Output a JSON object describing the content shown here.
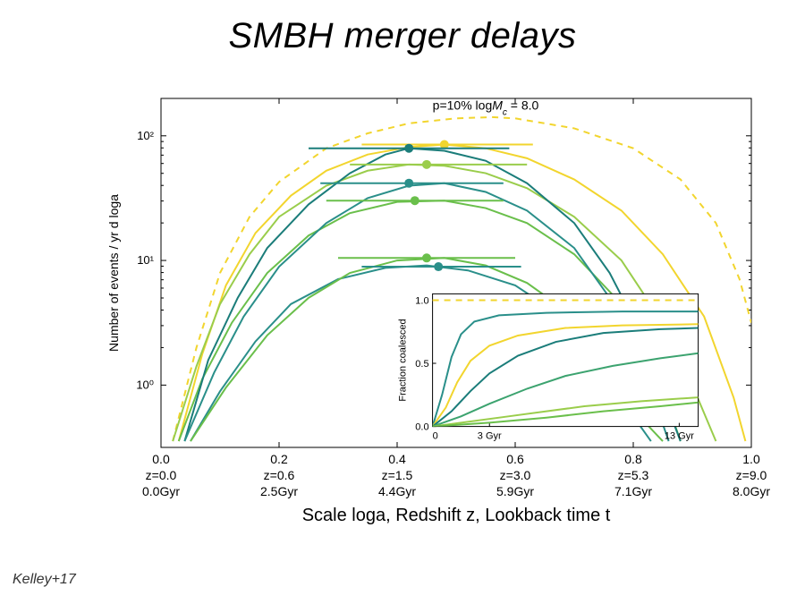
{
  "title": "SMBH merger delays",
  "credit": "Kelley+17",
  "main_chart": {
    "type": "line",
    "background_color": "#ffffff",
    "spine_color": "#000000",
    "annotation": "p=10%  log M_c = 8.0",
    "annotation_fontsize": 14,
    "ylabel": "Number of events / yr  d loga",
    "ylabel_fontsize": 14,
    "xlabel": "Scale loga, Redshift z, Lookback time t",
    "xlabel_fontsize": 20,
    "x": {
      "min": 0.0,
      "max": 1.0
    },
    "y": {
      "log": true,
      "min_exp": -0.5,
      "max_exp": 2.3
    },
    "xticks": [
      {
        "x": 0.0,
        "label_a": "0.0",
        "label_z": "z=0.0",
        "label_t": "0.0Gyr"
      },
      {
        "x": 0.2,
        "label_a": "0.2",
        "label_z": "z=0.6",
        "label_t": "2.5Gyr"
      },
      {
        "x": 0.4,
        "label_a": "0.4",
        "label_z": "z=1.5",
        "label_t": "4.4Gyr"
      },
      {
        "x": 0.6,
        "label_a": "0.6",
        "label_z": "z=3.0",
        "label_t": "5.9Gyr"
      },
      {
        "x": 0.8,
        "label_a": "0.8",
        "label_z": "z=5.3",
        "label_t": "7.1Gyr"
      },
      {
        "x": 1.0,
        "label_a": "1.0",
        "label_z": "z=9.0",
        "label_t": "8.0Gyr"
      }
    ],
    "yticks": [
      {
        "exp": 0,
        "label": "10⁰"
      },
      {
        "exp": 1,
        "label": "10¹"
      },
      {
        "exp": 2,
        "label": "10²"
      }
    ],
    "colors": {
      "yellow": "#f2d52e",
      "lime": "#9acd4b",
      "green": "#6abf4b",
      "darkgreen": "#3ca36f",
      "teal": "#2a8f8a",
      "darkteal": "#1b7d7a"
    },
    "series": [
      {
        "id": "dashed_yellow",
        "color": "#f2d52e",
        "dash": true,
        "line_width": 2,
        "points": [
          [
            0.02,
            -0.45
          ],
          [
            0.06,
            0.3
          ],
          [
            0.1,
            0.9
          ],
          [
            0.15,
            1.35
          ],
          [
            0.2,
            1.63
          ],
          [
            0.28,
            1.9
          ],
          [
            0.35,
            2.02
          ],
          [
            0.42,
            2.1
          ],
          [
            0.5,
            2.14
          ],
          [
            0.56,
            2.15
          ],
          [
            0.6,
            2.14
          ],
          [
            0.7,
            2.06
          ],
          [
            0.8,
            1.9
          ],
          [
            0.88,
            1.65
          ],
          [
            0.94,
            1.3
          ],
          [
            0.98,
            0.85
          ],
          [
            1.0,
            0.5
          ]
        ]
      },
      {
        "id": "yellow",
        "color": "#f2d52e",
        "dash": false,
        "line_width": 2.2,
        "points": [
          [
            0.03,
            -0.45
          ],
          [
            0.07,
            0.25
          ],
          [
            0.11,
            0.8
          ],
          [
            0.16,
            1.22
          ],
          [
            0.22,
            1.52
          ],
          [
            0.28,
            1.72
          ],
          [
            0.35,
            1.85
          ],
          [
            0.42,
            1.91
          ],
          [
            0.48,
            1.93
          ],
          [
            0.55,
            1.9
          ],
          [
            0.62,
            1.82
          ],
          [
            0.7,
            1.65
          ],
          [
            0.78,
            1.4
          ],
          [
            0.85,
            1.05
          ],
          [
            0.92,
            0.55
          ],
          [
            0.97,
            -0.1
          ],
          [
            0.99,
            -0.45
          ]
        ]
      },
      {
        "id": "lime",
        "color": "#9acd4b",
        "dash": false,
        "line_width": 2,
        "points": [
          [
            0.02,
            -0.45
          ],
          [
            0.06,
            0.15
          ],
          [
            0.1,
            0.65
          ],
          [
            0.15,
            1.05
          ],
          [
            0.2,
            1.35
          ],
          [
            0.28,
            1.6
          ],
          [
            0.35,
            1.72
          ],
          [
            0.42,
            1.77
          ],
          [
            0.48,
            1.76
          ],
          [
            0.55,
            1.7
          ],
          [
            0.62,
            1.58
          ],
          [
            0.7,
            1.35
          ],
          [
            0.78,
            1.0
          ],
          [
            0.85,
            0.5
          ],
          [
            0.9,
            0.0
          ],
          [
            0.94,
            -0.45
          ]
        ]
      },
      {
        "id": "green",
        "color": "#6abf4b",
        "dash": false,
        "line_width": 2,
        "points": [
          [
            0.03,
            -0.45
          ],
          [
            0.07,
            0.05
          ],
          [
            0.12,
            0.5
          ],
          [
            0.18,
            0.9
          ],
          [
            0.25,
            1.2
          ],
          [
            0.32,
            1.38
          ],
          [
            0.4,
            1.47
          ],
          [
            0.48,
            1.48
          ],
          [
            0.55,
            1.42
          ],
          [
            0.62,
            1.3
          ],
          [
            0.7,
            1.05
          ],
          [
            0.78,
            0.65
          ],
          [
            0.84,
            0.1
          ],
          [
            0.88,
            -0.45
          ]
        ]
      },
      {
        "id": "teal_high",
        "color": "#1b7d7a",
        "dash": false,
        "line_width": 2.2,
        "points": [
          [
            0.04,
            -0.45
          ],
          [
            0.08,
            0.2
          ],
          [
            0.13,
            0.7
          ],
          [
            0.18,
            1.1
          ],
          [
            0.25,
            1.45
          ],
          [
            0.32,
            1.7
          ],
          [
            0.38,
            1.85
          ],
          [
            0.42,
            1.9
          ],
          [
            0.48,
            1.88
          ],
          [
            0.55,
            1.8
          ],
          [
            0.62,
            1.62
          ],
          [
            0.7,
            1.3
          ],
          [
            0.76,
            0.9
          ],
          [
            0.82,
            0.35
          ],
          [
            0.86,
            -0.2
          ],
          [
            0.88,
            -0.45
          ]
        ]
      },
      {
        "id": "teal_mid",
        "color": "#2a8f8a",
        "dash": false,
        "line_width": 2,
        "points": [
          [
            0.04,
            -0.45
          ],
          [
            0.09,
            0.1
          ],
          [
            0.14,
            0.55
          ],
          [
            0.2,
            0.95
          ],
          [
            0.28,
            1.3
          ],
          [
            0.35,
            1.5
          ],
          [
            0.42,
            1.6
          ],
          [
            0.48,
            1.62
          ],
          [
            0.55,
            1.55
          ],
          [
            0.62,
            1.4
          ],
          [
            0.7,
            1.1
          ],
          [
            0.76,
            0.7
          ],
          [
            0.82,
            0.1
          ],
          [
            0.86,
            -0.45
          ]
        ]
      },
      {
        "id": "teal_low",
        "color": "#2a8f8a",
        "dash": false,
        "line_width": 2,
        "points": [
          [
            0.05,
            -0.45
          ],
          [
            0.1,
            -0.05
          ],
          [
            0.16,
            0.35
          ],
          [
            0.22,
            0.65
          ],
          [
            0.3,
            0.85
          ],
          [
            0.38,
            0.94
          ],
          [
            0.45,
            0.96
          ],
          [
            0.52,
            0.92
          ],
          [
            0.6,
            0.8
          ],
          [
            0.68,
            0.55
          ],
          [
            0.75,
            0.2
          ],
          [
            0.8,
            -0.25
          ],
          [
            0.83,
            -0.45
          ]
        ]
      },
      {
        "id": "green_low",
        "color": "#6abf4b",
        "dash": false,
        "line_width": 2,
        "points": [
          [
            0.05,
            -0.45
          ],
          [
            0.11,
            -0.02
          ],
          [
            0.18,
            0.4
          ],
          [
            0.25,
            0.7
          ],
          [
            0.32,
            0.9
          ],
          [
            0.4,
            1.0
          ],
          [
            0.48,
            1.02
          ],
          [
            0.55,
            0.96
          ],
          [
            0.62,
            0.82
          ],
          [
            0.7,
            0.55
          ],
          [
            0.77,
            0.15
          ],
          [
            0.82,
            -0.3
          ],
          [
            0.85,
            -0.45
          ]
        ]
      }
    ],
    "markers": [
      {
        "color": "#f2d52e",
        "x": 0.48,
        "yexp": 1.93,
        "xmin": 0.34,
        "xmax": 0.63
      },
      {
        "color": "#1b7d7a",
        "x": 0.42,
        "yexp": 1.9,
        "xmin": 0.25,
        "xmax": 0.59
      },
      {
        "color": "#9acd4b",
        "x": 0.45,
        "yexp": 1.77,
        "xmin": 0.32,
        "xmax": 0.62
      },
      {
        "color": "#2a8f8a",
        "x": 0.42,
        "yexp": 1.62,
        "xmin": 0.27,
        "xmax": 0.58
      },
      {
        "color": "#6abf4b",
        "x": 0.43,
        "yexp": 1.48,
        "xmin": 0.28,
        "xmax": 0.58
      },
      {
        "color": "#6abf4b",
        "x": 0.45,
        "yexp": 1.02,
        "xmin": 0.3,
        "xmax": 0.6
      },
      {
        "color": "#2a8f8a",
        "x": 0.47,
        "yexp": 0.95,
        "xmin": 0.34,
        "xmax": 0.61
      }
    ]
  },
  "inset_chart": {
    "type": "line",
    "ylabel": "Fraction coalesced",
    "ylabel_fontsize": 11,
    "x": {
      "min": 0,
      "max": 14
    },
    "y": {
      "min": 0,
      "max": 1.05
    },
    "xticks": [
      {
        "x": 0,
        "label": "0"
      },
      {
        "x": 3,
        "label": "3 Gyr"
      },
      {
        "x": 13,
        "label": "13 Gyr"
      }
    ],
    "yticks": [
      {
        "y": 0.0,
        "label": "0.0"
      },
      {
        "y": 0.5,
        "label": "0.5"
      },
      {
        "y": 1.0,
        "label": "1.0"
      }
    ],
    "series": [
      {
        "color": "#f2d52e",
        "dash": true,
        "points": [
          [
            0,
            1.0
          ],
          [
            14,
            1.0
          ]
        ]
      },
      {
        "color": "#2a8f8a",
        "dash": false,
        "points": [
          [
            0,
            0
          ],
          [
            0.5,
            0.25
          ],
          [
            1.0,
            0.55
          ],
          [
            1.5,
            0.73
          ],
          [
            2.2,
            0.83
          ],
          [
            3.5,
            0.88
          ],
          [
            6,
            0.9
          ],
          [
            10,
            0.91
          ],
          [
            14,
            0.91
          ]
        ]
      },
      {
        "color": "#f2d52e",
        "dash": false,
        "points": [
          [
            0,
            0
          ],
          [
            0.7,
            0.15
          ],
          [
            1.3,
            0.35
          ],
          [
            2.0,
            0.52
          ],
          [
            3.0,
            0.64
          ],
          [
            4.5,
            0.72
          ],
          [
            7,
            0.78
          ],
          [
            10,
            0.8
          ],
          [
            14,
            0.81
          ]
        ]
      },
      {
        "color": "#1b7d7a",
        "dash": false,
        "points": [
          [
            0,
            0
          ],
          [
            1.0,
            0.12
          ],
          [
            2.0,
            0.28
          ],
          [
            3.0,
            0.42
          ],
          [
            4.5,
            0.56
          ],
          [
            6.5,
            0.67
          ],
          [
            9,
            0.74
          ],
          [
            12,
            0.77
          ],
          [
            14,
            0.78
          ]
        ]
      },
      {
        "color": "#3ca36f",
        "dash": false,
        "points": [
          [
            0,
            0
          ],
          [
            1.5,
            0.08
          ],
          [
            3,
            0.18
          ],
          [
            5,
            0.3
          ],
          [
            7,
            0.4
          ],
          [
            9.5,
            0.48
          ],
          [
            12,
            0.54
          ],
          [
            14,
            0.58
          ]
        ]
      },
      {
        "color": "#9acd4b",
        "dash": false,
        "points": [
          [
            0,
            0
          ],
          [
            2,
            0.04
          ],
          [
            4,
            0.08
          ],
          [
            6,
            0.12
          ],
          [
            8,
            0.16
          ],
          [
            11,
            0.2
          ],
          [
            14,
            0.23
          ]
        ]
      },
      {
        "color": "#6abf4b",
        "dash": false,
        "points": [
          [
            0,
            0
          ],
          [
            3,
            0.03
          ],
          [
            6,
            0.07
          ],
          [
            9,
            0.12
          ],
          [
            12,
            0.16
          ],
          [
            14,
            0.19
          ]
        ]
      }
    ]
  }
}
